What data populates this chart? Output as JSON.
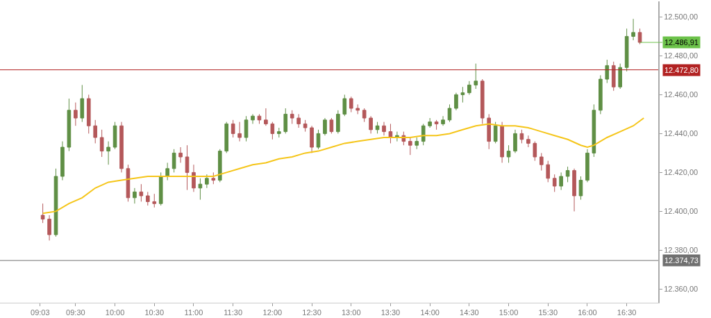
{
  "chart_data": {
    "type": "candlestick",
    "x": [
      9.0833,
      9.1667,
      9.25,
      9.3333,
      9.4167,
      9.5,
      9.5833,
      9.6667,
      9.75,
      9.8333,
      9.9167,
      10,
      10.0833,
      10.1667,
      10.25,
      10.3333,
      10.4167,
      10.5,
      10.5833,
      10.6667,
      10.75,
      10.8333,
      10.9167,
      11,
      11.0833,
      11.1667,
      11.25,
      11.3333,
      11.4167,
      11.5,
      11.5833,
      11.6667,
      11.75,
      11.8333,
      11.9167,
      12,
      12.0833,
      12.1667,
      12.25,
      12.3333,
      12.4167,
      12.5,
      12.5833,
      12.6667,
      12.75,
      12.8333,
      12.9167,
      13,
      13.0833,
      13.1667,
      13.25,
      13.3333,
      13.4167,
      13.5,
      13.5833,
      13.6667,
      13.75,
      13.8333,
      13.9167,
      14,
      14.0833,
      14.1667,
      14.25,
      14.3333,
      14.4167,
      14.5,
      14.5833,
      14.6667,
      14.75,
      14.8333,
      14.9167,
      15,
      15.0833,
      15.1667,
      15.25,
      15.3333,
      15.4167,
      15.5,
      15.5833,
      15.6667,
      15.75,
      15.8333,
      15.9167,
      16,
      16.0833,
      16.1667,
      16.25,
      16.3333,
      16.4167,
      16.5,
      16.5833,
      16.6667
    ],
    "ohlc": [
      [
        12398,
        12404,
        12394,
        12396
      ],
      [
        12396,
        12398,
        12385,
        12388
      ],
      [
        12388,
        12422,
        12387,
        12418
      ],
      [
        12418,
        12436,
        12416,
        12433
      ],
      [
        12433,
        12458,
        12431,
        12452
      ],
      [
        12452,
        12456,
        12444,
        12448
      ],
      [
        12448,
        12465,
        12446,
        12458
      ],
      [
        12458,
        12460,
        12440,
        12444
      ],
      [
        12444,
        12447,
        12435,
        12438
      ],
      [
        12438,
        12442,
        12428,
        12431
      ],
      [
        12431,
        12436,
        12424,
        12433
      ],
      [
        12433,
        12446,
        12432,
        12444
      ],
      [
        12444,
        12446,
        12420,
        12422
      ],
      [
        12422,
        12424,
        12405,
        12407
      ],
      [
        12407,
        12412,
        12404,
        12410
      ],
      [
        12410,
        12414,
        12405,
        12408
      ],
      [
        12408,
        12410,
        12403,
        12405
      ],
      [
        12405,
        12409,
        12402,
        12404
      ],
      [
        12404,
        12420,
        12403,
        12418
      ],
      [
        12418,
        12425,
        12416,
        12422
      ],
      [
        12422,
        12432,
        12420,
        12430
      ],
      [
        12430,
        12433,
        12425,
        12428
      ],
      [
        12428,
        12434,
        12411,
        12420
      ],
      [
        12420,
        12424,
        12410,
        12412
      ],
      [
        12412,
        12417,
        12406,
        12414
      ],
      [
        12414,
        12419,
        12412,
        12417
      ],
      [
        12417,
        12420,
        12414,
        12416
      ],
      [
        12416,
        12432,
        12415,
        12431
      ],
      [
        12431,
        12446,
        12430,
        12445
      ],
      [
        12445,
        12447,
        12438,
        12440
      ],
      [
        12440,
        12446,
        12436,
        12438
      ],
      [
        12438,
        12449,
        12436,
        12447
      ],
      [
        12447,
        12450,
        12445,
        12449
      ],
      [
        12449,
        12450,
        12445,
        12447
      ],
      [
        12447,
        12453,
        12444,
        12445
      ],
      [
        12445,
        12446,
        12437,
        12440
      ],
      [
        12440,
        12443,
        12438,
        12441
      ],
      [
        12441,
        12453,
        12440,
        12450
      ],
      [
        12450,
        12452,
        12445,
        12448
      ],
      [
        12448,
        12450,
        12443,
        12445
      ],
      [
        12445,
        12447,
        12441,
        12443
      ],
      [
        12443,
        12444,
        12430,
        12433
      ],
      [
        12433,
        12442,
        12432,
        12440
      ],
      [
        12440,
        12448,
        12439,
        12447
      ],
      [
        12447,
        12448,
        12440,
        12441
      ],
      [
        12441,
        12452,
        12440,
        12450
      ],
      [
        12450,
        12460,
        12449,
        12458
      ],
      [
        12458,
        12459,
        12451,
        12453
      ],
      [
        12453,
        12455,
        12450,
        12452
      ],
      [
        12452,
        12453,
        12446,
        12448
      ],
      [
        12448,
        12449,
        12440,
        12442
      ],
      [
        12442,
        12446,
        12440,
        12444
      ],
      [
        12444,
        12446,
        12439,
        12441
      ],
      [
        12441,
        12445,
        12435,
        12438
      ],
      [
        12438,
        12441,
        12436,
        12439
      ],
      [
        12439,
        12441,
        12434,
        12436
      ],
      [
        12436,
        12438,
        12429,
        12434
      ],
      [
        12434,
        12438,
        12432,
        12436
      ],
      [
        12436,
        12445,
        12434,
        12444
      ],
      [
        12444,
        12448,
        12443,
        12446
      ],
      [
        12446,
        12447,
        12442,
        12445
      ],
      [
        12445,
        12449,
        12444,
        12447
      ],
      [
        12447,
        12455,
        12446,
        12453
      ],
      [
        12453,
        12461,
        12452,
        12460
      ],
      [
        12460,
        12464,
        12456,
        12461
      ],
      [
        12461,
        12467,
        12460,
        12465
      ],
      [
        12465,
        12476,
        12463,
        12467
      ],
      [
        12467,
        12468,
        12445,
        12448
      ],
      [
        12448,
        12450,
        12432,
        12436
      ],
      [
        12436,
        12446,
        12435,
        12444
      ],
      [
        12444,
        12446,
        12425,
        12428
      ],
      [
        12428,
        12434,
        12425,
        12431
      ],
      [
        12431,
        12442,
        12430,
        12440
      ],
      [
        12440,
        12442,
        12435,
        12437
      ],
      [
        12437,
        12439,
        12433,
        12435
      ],
      [
        12435,
        12436,
        12426,
        12428
      ],
      [
        12428,
        12430,
        12421,
        12424
      ],
      [
        12424,
        12426,
        12415,
        12417
      ],
      [
        12417,
        12419,
        12410,
        12413
      ],
      [
        12413,
        12420,
        12411,
        12418
      ],
      [
        12418,
        12423,
        12415,
        12421
      ],
      [
        12421,
        12422,
        12400,
        12408
      ],
      [
        12408,
        12418,
        12406,
        12416
      ],
      [
        12416,
        12432,
        12415,
        12430
      ],
      [
        12430,
        12455,
        12428,
        12452
      ],
      [
        12452,
        12470,
        12450,
        12468
      ],
      [
        12468,
        12478,
        12466,
        12475
      ],
      [
        12475,
        12477,
        12462,
        12464
      ],
      [
        12464,
        12476,
        12463,
        12474
      ],
      [
        12474,
        12494,
        12472,
        12490
      ],
      [
        12490,
        12499,
        12488,
        12492
      ],
      [
        12492,
        12494,
        12486,
        12486.91
      ]
    ],
    "colors": [
      "#b4585a",
      "#b4585a",
      "#5f8f45",
      "#5f8f45",
      "#5f8f45",
      "#b4585a",
      "#5f8f45",
      "#b4585a",
      "#b4585a",
      "#b4585a",
      "#5f8f45",
      "#5f8f45",
      "#b4585a",
      "#b4585a",
      "#5f8f45",
      "#b4585a",
      "#b4585a",
      "#b4585a",
      "#5f8f45",
      "#5f8f45",
      "#5f8f45",
      "#b4585a",
      "#b4585a",
      "#b4585a",
      "#5f8f45",
      "#5f8f45",
      "#b4585a",
      "#5f8f45",
      "#5f8f45",
      "#b4585a",
      "#b4585a",
      "#5f8f45",
      "#5f8f45",
      "#b4585a",
      "#b4585a",
      "#b4585a",
      "#5f8f45",
      "#5f8f45",
      "#b4585a",
      "#b4585a",
      "#b4585a",
      "#b4585a",
      "#5f8f45",
      "#5f8f45",
      "#b4585a",
      "#5f8f45",
      "#5f8f45",
      "#b4585a",
      "#b4585a",
      "#b4585a",
      "#b4585a",
      "#5f8f45",
      "#b4585a",
      "#b4585a",
      "#5f8f45",
      "#b4585a",
      "#b4585a",
      "#5f8f45",
      "#5f8f45",
      "#5f8f45",
      "#b4585a",
      "#5f8f45",
      "#5f8f45",
      "#5f8f45",
      "#5f8f45",
      "#5f8f45",
      "#5f8f45",
      "#b4585a",
      "#b4585a",
      "#5f8f45",
      "#b4585a",
      "#5f8f45",
      "#5f8f45",
      "#b4585a",
      "#b4585a",
      "#b4585a",
      "#b4585a",
      "#b4585a",
      "#b4585a",
      "#5f8f45",
      "#5f8f45",
      "#b4585a",
      "#5f8f45",
      "#5f8f45",
      "#5f8f45",
      "#5f8f45",
      "#5f8f45",
      "#b4585a",
      "#5f8f45",
      "#5f8f45",
      "#5f8f45",
      "#b4585a"
    ],
    "series": [
      {
        "type": "line",
        "color": "#f5c518",
        "x": [
          9.0833,
          9.25,
          9.4167,
          9.5833,
          9.75,
          9.9167,
          10.0833,
          10.25,
          10.4167,
          10.5833,
          10.75,
          10.9167,
          11.0833,
          11.25,
          11.4167,
          11.5833,
          11.75,
          11.9167,
          12.0833,
          12.25,
          12.4167,
          12.5833,
          12.75,
          12.9167,
          13.0833,
          13.25,
          13.4167,
          13.5833,
          13.75,
          13.9167,
          14.0833,
          14.25,
          14.4167,
          14.5833,
          14.75,
          14.9167,
          15.0833,
          15.25,
          15.4167,
          15.5833,
          15.75,
          15.9167,
          16,
          16.0833,
          16.25,
          16.4167,
          16.5833,
          16.7167
        ],
        "values": [
          12399,
          12400,
          12404,
          12407,
          12412,
          12415,
          12416,
          12417,
          12418,
          12418,
          12418,
          12418,
          12418,
          12418,
          12420,
          12422,
          12424,
          12425,
          12427,
          12428,
          12430,
          12431,
          12433,
          12435,
          12436,
          12437,
          12438,
          12438,
          12438,
          12439,
          12439,
          12440,
          12442,
          12444,
          12445,
          12444,
          12444,
          12443,
          12441,
          12439,
          12437,
          12434,
          12433,
          12434,
          12438,
          12441,
          12444,
          12448
        ]
      }
    ],
    "xlim": [
      8.54,
      16.9
    ],
    "xticks": [
      {
        "value": 9.05,
        "label": "09:03"
      },
      {
        "value": 9.5,
        "label": "09:30"
      },
      {
        "value": 10,
        "label": "10:00"
      },
      {
        "value": 10.5,
        "label": "10:30"
      },
      {
        "value": 11,
        "label": "11:00"
      },
      {
        "value": 11.5,
        "label": "11:30"
      },
      {
        "value": 12,
        "label": "12:00"
      },
      {
        "value": 12.5,
        "label": "12:30"
      },
      {
        "value": 13,
        "label": "13:00"
      },
      {
        "value": 13.5,
        "label": "13:30"
      },
      {
        "value": 14,
        "label": "14:00"
      },
      {
        "value": 14.5,
        "label": "14:30"
      },
      {
        "value": 15,
        "label": "15:00"
      },
      {
        "value": 15.5,
        "label": "15:30"
      },
      {
        "value": 16,
        "label": "16:00"
      },
      {
        "value": 16.5,
        "label": "16:30"
      }
    ],
    "ylim": [
      12353,
      12508
    ],
    "yticks": [
      {
        "value": 12360,
        "label": "12.360,00"
      },
      {
        "value": 12380,
        "label": "12.380,00"
      },
      {
        "value": 12400,
        "label": "12.400,00"
      },
      {
        "value": 12420,
        "label": "12.420,00"
      },
      {
        "value": 12440,
        "label": "12.440,00"
      },
      {
        "value": 12460,
        "label": "12.460,00"
      },
      {
        "value": 12480,
        "label": "12.480,00"
      },
      {
        "value": 12500,
        "label": "12.500,00"
      }
    ],
    "ref_lines": [
      {
        "axis": "y",
        "value": 12472.8,
        "label": "12.472,80",
        "color": "#b22222"
      },
      {
        "axis": "y",
        "value": 12374.73,
        "label": "12.374,73",
        "color": "#707070"
      }
    ],
    "annotations": [
      {
        "text": "12.486,91",
        "x": 16.6667,
        "y": 12486.91
      }
    ]
  }
}
